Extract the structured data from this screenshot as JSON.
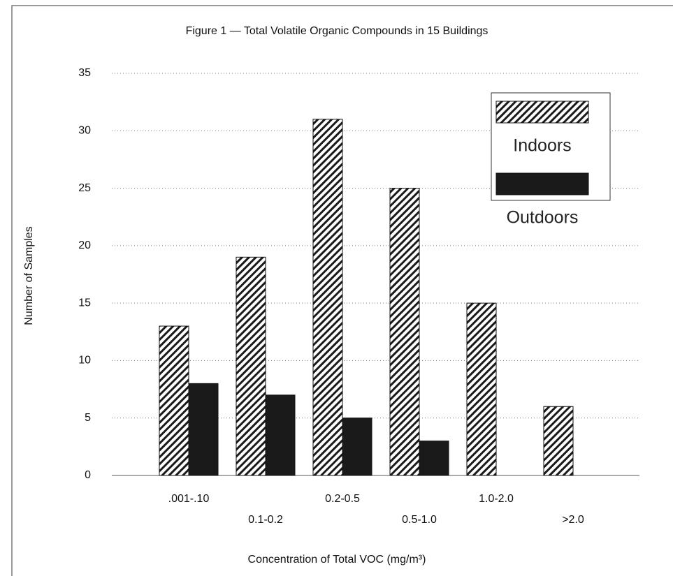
{
  "chart_data": {
    "type": "bar",
    "title": "Figure 1 — Total Volatile Organic Compounds in 15 Buildings",
    "x_label": "Concentration of Total VOC (mg/m³)",
    "y_label": "Number of Samples",
    "categories": [
      ".001-.10",
      "0.1-0.2",
      "0.2-0.5",
      "0.5-1.0",
      "1.0-2.0",
      ">2.0"
    ],
    "series": [
      {
        "name": "Indoors",
        "color": "#1a1a1a",
        "hatch": true,
        "values": [
          13,
          19,
          31,
          25,
          15,
          6
        ]
      },
      {
        "name": "Outdoors",
        "color": "#1a1a1a",
        "hatch": false,
        "values": [
          8,
          7,
          5,
          3,
          0,
          0
        ]
      }
    ],
    "ylim": [
      0,
      35
    ],
    "yticks": [
      0,
      5,
      10,
      15,
      20,
      25,
      30,
      35
    ],
    "grid": true,
    "legend": "upper right"
  }
}
